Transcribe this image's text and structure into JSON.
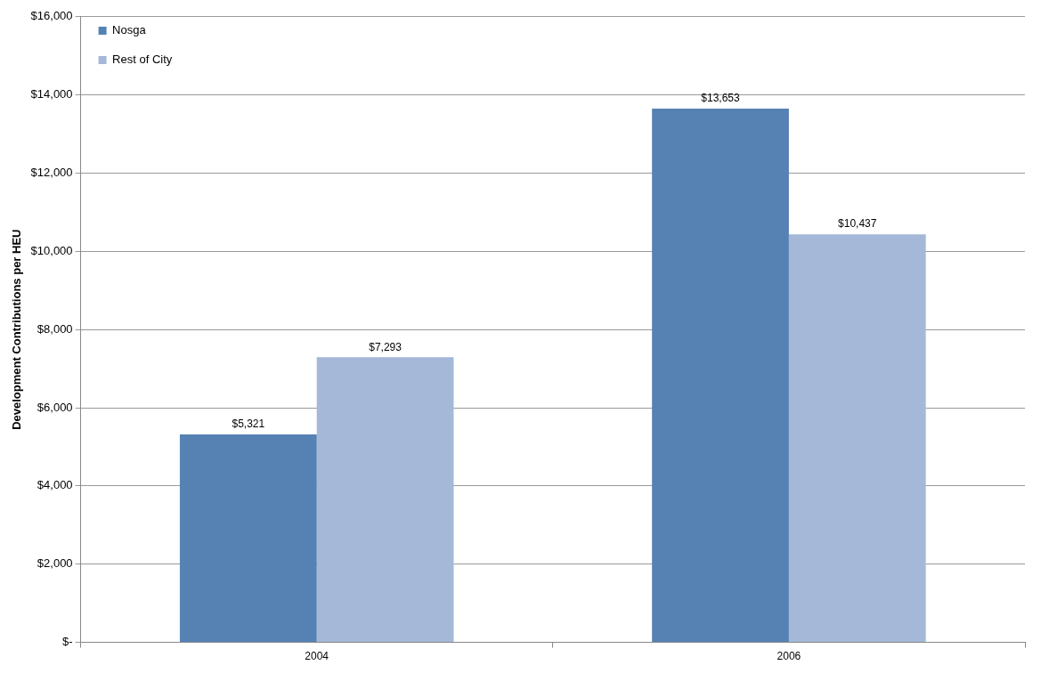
{
  "chart_data": {
    "type": "bar",
    "ylabel": "Development Contributions per HEU",
    "categories": [
      "2004",
      "2006"
    ],
    "series": [
      {
        "name": "Nosga",
        "color": "#5582b3",
        "values": [
          5321,
          13653
        ],
        "value_labels": [
          "$5,321",
          "$13,653"
        ]
      },
      {
        "name": "Rest of City",
        "color": "#a5b8d8",
        "values": [
          7293,
          10437
        ],
        "value_labels": [
          "$7,293",
          "$10,437"
        ]
      }
    ],
    "ylim": [
      0,
      16000
    ],
    "yticks": [
      {
        "value": 0,
        "label": "$-"
      },
      {
        "value": 2000,
        "label": "$2,000"
      },
      {
        "value": 4000,
        "label": "$4,000"
      },
      {
        "value": 6000,
        "label": "$6,000"
      },
      {
        "value": 8000,
        "label": "$8,000"
      },
      {
        "value": 10000,
        "label": "$10,000"
      },
      {
        "value": 12000,
        "label": "$12,000"
      },
      {
        "value": 14000,
        "label": "$14,000"
      },
      {
        "value": 16000,
        "label": "$16,000"
      }
    ],
    "grid": "y",
    "legend": "top left"
  }
}
